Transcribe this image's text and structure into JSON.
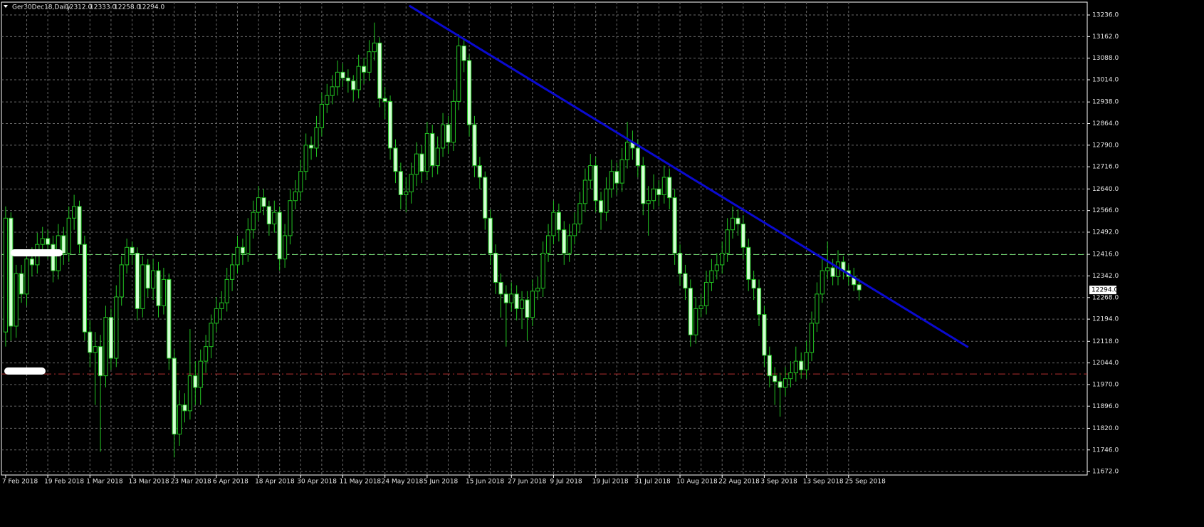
{
  "chart_data": {
    "type": "candlestick",
    "title": "Ger30Dec18,Daily",
    "header_values": [
      {
        "value": 12312,
        "label": "12312.0"
      },
      {
        "value": 12333,
        "label": "12333.0"
      },
      {
        "value": 12258,
        "label": "12258.0"
      },
      {
        "value": 12294,
        "label": "12294.0"
      }
    ],
    "categories": [
      "7 Feb 2018",
      null,
      null,
      null,
      null,
      null,
      null,
      null,
      "19 Feb 2018",
      null,
      null,
      null,
      null,
      null,
      null,
      null,
      "1 Mar 2018",
      null,
      null,
      null,
      null,
      null,
      null,
      null,
      "13 Mar 2018",
      null,
      null,
      null,
      null,
      null,
      null,
      null,
      "23 Mar 2018",
      null,
      null,
      null,
      null,
      null,
      null,
      null,
      "6 Apr 2018",
      null,
      null,
      null,
      null,
      null,
      null,
      null,
      "18 Apr 2018",
      null,
      null,
      null,
      null,
      null,
      null,
      null,
      "30 Apr 2018",
      null,
      null,
      null,
      null,
      null,
      null,
      null,
      "11 May 2018",
      null,
      null,
      null,
      null,
      null,
      null,
      null,
      "24 May 2018",
      null,
      null,
      null,
      null,
      null,
      null,
      null,
      "5 Jun 2018",
      null,
      null,
      null,
      null,
      null,
      null,
      null,
      "15 Jun 2018",
      null,
      null,
      null,
      null,
      null,
      null,
      null,
      "27 Jun 2018",
      null,
      null,
      null,
      null,
      null,
      null,
      null,
      "9 Jul 2018",
      null,
      null,
      null,
      null,
      null,
      null,
      null,
      "19 Jul 2018",
      null,
      null,
      null,
      null,
      null,
      null,
      null,
      "31 Jul 2018",
      null,
      null,
      null,
      null,
      null,
      null,
      null,
      "10 Aug 2018",
      null,
      null,
      null,
      null,
      null,
      null,
      null,
      "22 Aug 2018",
      null,
      null,
      null,
      null,
      null,
      null,
      null,
      "3 Sep 2018",
      null,
      null,
      null,
      null,
      null,
      null,
      null,
      "13 Sep 2018",
      null,
      null,
      null,
      null,
      null,
      null,
      null,
      "25 Sep 2018",
      null,
      null
    ],
    "ohlc": [
      [
        12150,
        12580,
        12100,
        12540
      ],
      [
        12540,
        12560,
        12120,
        12170
      ],
      [
        12170,
        12380,
        12130,
        12350
      ],
      [
        12350,
        12380,
        12250,
        12280
      ],
      [
        12280,
        12430,
        12240,
        12400
      ],
      [
        12400,
        12440,
        12340,
        12380
      ],
      [
        12380,
        12490,
        12350,
        12450
      ],
      [
        12450,
        12510,
        12410,
        12470
      ],
      [
        12470,
        12500,
        12400,
        12450
      ],
      [
        12450,
        12480,
        12320,
        12360
      ],
      [
        12360,
        12520,
        12330,
        12480
      ],
      [
        12480,
        12510,
        12380,
        12420
      ],
      [
        12420,
        12580,
        12390,
        12540
      ],
      [
        12540,
        12620,
        12500,
        12580
      ],
      [
        12580,
        12600,
        12420,
        12450
      ],
      [
        12450,
        12480,
        12120,
        12150
      ],
      [
        12150,
        12190,
        12030,
        12080
      ],
      [
        12080,
        12150,
        11900,
        12100
      ],
      [
        12100,
        12140,
        11740,
        12000
      ],
      [
        12000,
        12240,
        11960,
        12200
      ],
      [
        12200,
        12230,
        12020,
        12060
      ],
      [
        12060,
        12310,
        12030,
        12270
      ],
      [
        12270,
        12410,
        12240,
        12380
      ],
      [
        12380,
        12470,
        12350,
        12440
      ],
      [
        12440,
        12460,
        12380,
        12420
      ],
      [
        12420,
        12440,
        12190,
        12230
      ],
      [
        12230,
        12410,
        12200,
        12380
      ],
      [
        12380,
        12400,
        12270,
        12300
      ],
      [
        12300,
        12400,
        12260,
        12360
      ],
      [
        12360,
        12390,
        12200,
        12240
      ],
      [
        12240,
        12370,
        12210,
        12330
      ],
      [
        12330,
        12350,
        12020,
        12060
      ],
      [
        12060,
        12090,
        11720,
        11800
      ],
      [
        11800,
        11950,
        11760,
        11900
      ],
      [
        11900,
        11940,
        11840,
        11880
      ],
      [
        11880,
        12160,
        11850,
        12000
      ],
      [
        12000,
        12050,
        11900,
        11960
      ],
      [
        11960,
        12090,
        11900,
        12050
      ],
      [
        12050,
        12140,
        12010,
        12100
      ],
      [
        12100,
        12210,
        12060,
        12180
      ],
      [
        12180,
        12270,
        12150,
        12230
      ],
      [
        12230,
        12290,
        12190,
        12250
      ],
      [
        12250,
        12370,
        12220,
        12330
      ],
      [
        12330,
        12420,
        12290,
        12380
      ],
      [
        12380,
        12480,
        12350,
        12440
      ],
      [
        12440,
        12470,
        12380,
        12420
      ],
      [
        12420,
        12540,
        12390,
        12500
      ],
      [
        12500,
        12600,
        12470,
        12560
      ],
      [
        12560,
        12650,
        12530,
        12610
      ],
      [
        12610,
        12640,
        12550,
        12580
      ],
      [
        12580,
        12600,
        12480,
        12520
      ],
      [
        12520,
        12600,
        12490,
        12560
      ],
      [
        12560,
        12580,
        12360,
        12400
      ],
      [
        12400,
        12520,
        12370,
        12480
      ],
      [
        12480,
        12640,
        12450,
        12600
      ],
      [
        12600,
        12670,
        12570,
        12630
      ],
      [
        12630,
        12740,
        12600,
        12700
      ],
      [
        12700,
        12830,
        12670,
        12790
      ],
      [
        12790,
        12820,
        12740,
        12780
      ],
      [
        12780,
        12890,
        12750,
        12850
      ],
      [
        12850,
        12970,
        12820,
        12930
      ],
      [
        12930,
        13000,
        12900,
        12960
      ],
      [
        12960,
        13030,
        12930,
        12990
      ],
      [
        12990,
        13080,
        12960,
        13040
      ],
      [
        13040,
        13070,
        12990,
        13020
      ],
      [
        13020,
        13050,
        12970,
        13010
      ],
      [
        13010,
        13030,
        12940,
        12980
      ],
      [
        12980,
        13100,
        12950,
        13060
      ],
      [
        13060,
        13090,
        13000,
        13040
      ],
      [
        13040,
        13150,
        13010,
        13110
      ],
      [
        13110,
        13210,
        13080,
        13140
      ],
      [
        13140,
        13160,
        12920,
        12950
      ],
      [
        12950,
        12990,
        12880,
        12940
      ],
      [
        12940,
        12960,
        12740,
        12780
      ],
      [
        12780,
        12810,
        12660,
        12700
      ],
      [
        12700,
        12730,
        12570,
        12620
      ],
      [
        12620,
        12680,
        12560,
        12630
      ],
      [
        12630,
        12730,
        12590,
        12690
      ],
      [
        12690,
        12800,
        12650,
        12760
      ],
      [
        12760,
        12790,
        12660,
        12700
      ],
      [
        12700,
        12870,
        12670,
        12830
      ],
      [
        12830,
        12860,
        12680,
        12720
      ],
      [
        12720,
        12820,
        12690,
        12780
      ],
      [
        12780,
        12900,
        12750,
        12860
      ],
      [
        12860,
        12890,
        12760,
        12800
      ],
      [
        12800,
        12980,
        12770,
        12940
      ],
      [
        12940,
        13170,
        12910,
        13130
      ],
      [
        13130,
        13150,
        13040,
        13080
      ],
      [
        13080,
        13100,
        12820,
        12860
      ],
      [
        12860,
        12890,
        12680,
        12720
      ],
      [
        12720,
        12750,
        12640,
        12680
      ],
      [
        12680,
        12700,
        12500,
        12540
      ],
      [
        12540,
        12570,
        12380,
        12420
      ],
      [
        12420,
        12450,
        12280,
        12320
      ],
      [
        12320,
        12350,
        12200,
        12280
      ],
      [
        12280,
        12310,
        12100,
        12250
      ],
      [
        12250,
        12320,
        12220,
        12280
      ],
      [
        12280,
        12310,
        12190,
        12230
      ],
      [
        12230,
        12290,
        12160,
        12260
      ],
      [
        12260,
        12290,
        12120,
        12200
      ],
      [
        12200,
        12330,
        12170,
        12290
      ],
      [
        12290,
        12340,
        12260,
        12300
      ],
      [
        12300,
        12460,
        12270,
        12420
      ],
      [
        12420,
        12520,
        12390,
        12480
      ],
      [
        12480,
        12600,
        12450,
        12560
      ],
      [
        12560,
        12590,
        12460,
        12500
      ],
      [
        12500,
        12530,
        12380,
        12420
      ],
      [
        12420,
        12520,
        12390,
        12480
      ],
      [
        12480,
        12560,
        12450,
        12520
      ],
      [
        12520,
        12630,
        12490,
        12590
      ],
      [
        12590,
        12710,
        12560,
        12670
      ],
      [
        12670,
        12760,
        12640,
        12720
      ],
      [
        12720,
        12750,
        12560,
        12600
      ],
      [
        12600,
        12630,
        12500,
        12560
      ],
      [
        12560,
        12680,
        12530,
        12640
      ],
      [
        12640,
        12740,
        12610,
        12700
      ],
      [
        12700,
        12730,
        12620,
        12660
      ],
      [
        12660,
        12780,
        12630,
        12740
      ],
      [
        12740,
        12870,
        12710,
        12800
      ],
      [
        12800,
        12840,
        12740,
        12780
      ],
      [
        12780,
        12810,
        12680,
        12720
      ],
      [
        12720,
        12750,
        12550,
        12590
      ],
      [
        12590,
        12650,
        12480,
        12600
      ],
      [
        12600,
        12690,
        12570,
        12640
      ],
      [
        12640,
        12670,
        12580,
        12620
      ],
      [
        12620,
        12720,
        12590,
        12680
      ],
      [
        12680,
        12710,
        12570,
        12610
      ],
      [
        12610,
        12640,
        12380,
        12420
      ],
      [
        12420,
        12450,
        12310,
        12350
      ],
      [
        12350,
        12380,
        12260,
        12300
      ],
      [
        12300,
        12330,
        12100,
        12140
      ],
      [
        12140,
        12270,
        12110,
        12230
      ],
      [
        12230,
        12280,
        12200,
        12240
      ],
      [
        12240,
        12360,
        12210,
        12320
      ],
      [
        12320,
        12400,
        12290,
        12360
      ],
      [
        12360,
        12420,
        12330,
        12380
      ],
      [
        12380,
        12460,
        12350,
        12420
      ],
      [
        12420,
        12540,
        12390,
        12500
      ],
      [
        12500,
        12580,
        12470,
        12540
      ],
      [
        12540,
        12570,
        12480,
        12520
      ],
      [
        12520,
        12550,
        12400,
        12440
      ],
      [
        12440,
        12470,
        12290,
        12330
      ],
      [
        12330,
        12360,
        12260,
        12300
      ],
      [
        12300,
        12330,
        12170,
        12210
      ],
      [
        12210,
        12240,
        12030,
        12070
      ],
      [
        12070,
        12100,
        11960,
        12000
      ],
      [
        12000,
        12030,
        11900,
        11980
      ],
      [
        11980,
        12010,
        11860,
        11960
      ],
      [
        11960,
        12030,
        11930,
        11990
      ],
      [
        11990,
        12050,
        11960,
        12010
      ],
      [
        12010,
        12100,
        11980,
        12050
      ],
      [
        12050,
        12080,
        11990,
        12020
      ],
      [
        12020,
        12120,
        11990,
        12080
      ],
      [
        12080,
        12220,
        12050,
        12180
      ],
      [
        12180,
        12320,
        12150,
        12280
      ],
      [
        12280,
        12400,
        12250,
        12360
      ],
      [
        12360,
        12460,
        12330,
        12370
      ],
      [
        12370,
        12400,
        12310,
        12340
      ],
      [
        12340,
        12430,
        12310,
        12390
      ],
      [
        12390,
        12410,
        12330,
        12360
      ],
      [
        12360,
        12380,
        12310,
        12340
      ],
      [
        12340,
        12370,
        12290,
        12312
      ],
      [
        12312,
        12333,
        12258,
        12294
      ]
    ],
    "up_color": "#000000",
    "down_color": "#d4ffd4",
    "wick_color": "#22c422",
    "xlim": [
      -0.8,
      205.3
    ],
    "ylim": [
      11660,
      13280
    ],
    "yticks": [
      {
        "value": 13236,
        "label": "13236.0"
      },
      {
        "value": 13162,
        "label": "13162.0"
      },
      {
        "value": 13088,
        "label": "13088.0"
      },
      {
        "value": 13014,
        "label": "13014.0"
      },
      {
        "value": 12938,
        "label": "12938.0"
      },
      {
        "value": 12864,
        "label": "12864.0"
      },
      {
        "value": 12790,
        "label": "12790.0"
      },
      {
        "value": 12716,
        "label": "12716.0"
      },
      {
        "value": 12640,
        "label": "12640.0"
      },
      {
        "value": 12566,
        "label": "12566.0"
      },
      {
        "value": 12492,
        "label": "12492.0"
      },
      {
        "value": 12416,
        "label": "12416.0"
      },
      {
        "value": 12342,
        "label": "12342.0"
      },
      {
        "value": 12268,
        "label": "12268.0"
      },
      {
        "value": 12194,
        "label": "12194.0"
      },
      {
        "value": 12118,
        "label": "12118.0"
      },
      {
        "value": 12044,
        "label": "12044.0"
      },
      {
        "value": 11970,
        "label": "11970.0"
      },
      {
        "value": 11896,
        "label": "11896.0"
      },
      {
        "value": 11820,
        "label": "11820.0"
      },
      {
        "value": 11746,
        "label": "11746.0"
      },
      {
        "value": 11672,
        "label": "11672.0"
      }
    ],
    "grid": true,
    "xgrid_every": 4,
    "hlines": [
      {
        "value": 12415,
        "color": "#6fd46f"
      },
      {
        "value": 12006,
        "color": "#b83030"
      }
    ],
    "trendline": {
      "x": [
        76.6,
        182.7
      ],
      "y": [
        13268,
        12098
      ],
      "color": "#0a0ad0"
    },
    "current_price": {
      "value": 12294,
      "label": "12294.0"
    }
  }
}
